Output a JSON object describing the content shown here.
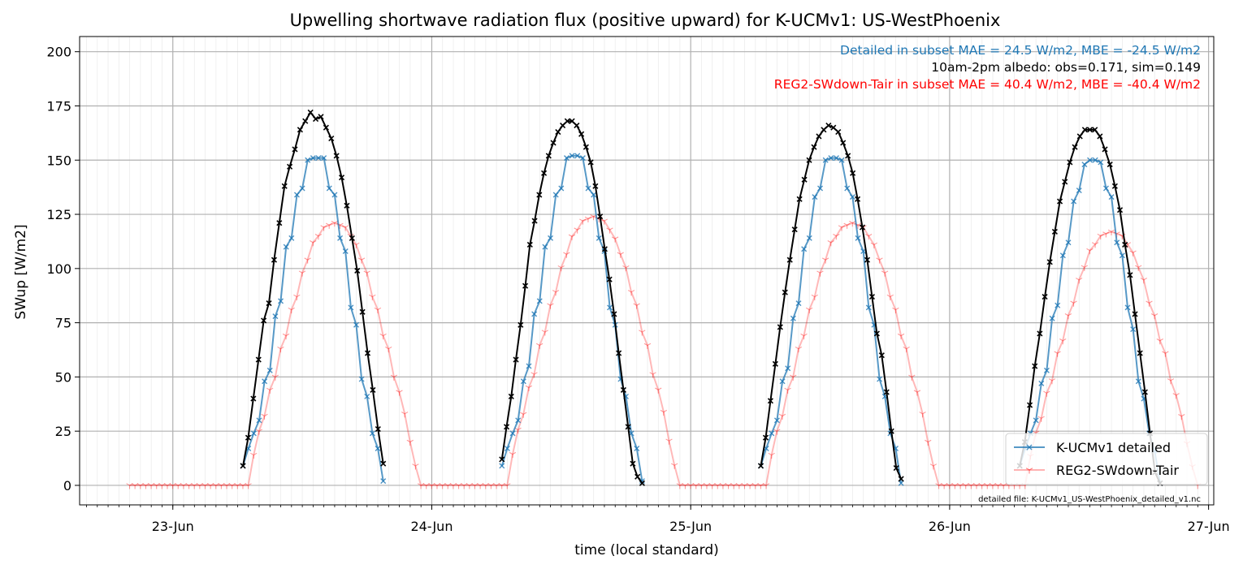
{
  "chart_data": {
    "type": "line",
    "title": "Upwelling shortwave radiation flux (positive upward) for K-UCMv1: US-WestPhoenix",
    "xlabel": "time (local standard)",
    "ylabel": "SWup [W/m2]",
    "x_unit": "day of June (fractional, local standard time)",
    "xlim": [
      22.64,
      27.02
    ],
    "ylim": [
      -9,
      207
    ],
    "yticks": [
      0,
      25,
      50,
      75,
      100,
      125,
      150,
      175,
      200
    ],
    "xticks": [
      {
        "value": 23,
        "label": "23-Jun"
      },
      {
        "value": 24,
        "label": "24-Jun"
      },
      {
        "value": 25,
        "label": "25-Jun"
      },
      {
        "value": 26,
        "label": "26-Jun"
      },
      {
        "value": 27,
        "label": "27-Jun"
      }
    ],
    "grid": true,
    "legend_position": "lower right",
    "annotations": [
      {
        "text": "Detailed in subset MAE = 24.5 W/m2, MBE = -24.5 W/m2",
        "color": "#1f77b4"
      },
      {
        "text": "10am-2pm albedo: obs=0.171, sim=0.149",
        "color": "#000000"
      },
      {
        "text": "REG2-SWdown-Tair in subset MAE = 40.4 W/m2, MBE = -40.4 W/m2",
        "color": "#ff0000"
      }
    ],
    "footnote": "detailed file: K-UCMv1_US-WestPhoenix_detailed_v1.nc",
    "series": [
      {
        "name": "K-UCMv1 detailed",
        "color": "#1f77b4",
        "marker": "x",
        "days": [
          {
            "day": 23,
            "values": [
              9,
              17,
              24,
              30,
              48,
              53,
              78,
              85,
              110,
              114,
              134,
              137,
              150,
              151,
              151,
              151,
              137,
              134,
              114,
              108,
              82,
              74,
              49,
              41,
              24,
              17,
              2
            ]
          },
          {
            "day": 24,
            "values": [
              9,
              17,
              24,
              30,
              48,
              55,
              79,
              85,
              110,
              114,
              134,
              137,
              151,
              152,
              152,
              151,
              137,
              134,
              114,
              108,
              82,
              74,
              49,
              41,
              24,
              17,
              2
            ]
          },
          {
            "day": 25,
            "values": [
              9,
              17,
              24,
              30,
              48,
              54,
              77,
              84,
              109,
              114,
              133,
              137,
              150,
              151,
              151,
              150,
              137,
              133,
              114,
              108,
              82,
              74,
              49,
              41,
              24,
              17,
              1
            ]
          },
          {
            "day": 26,
            "values": [
              9,
              17,
              24,
              30,
              47,
              53,
              77,
              83,
              106,
              112,
              131,
              136,
              148,
              150,
              150,
              149,
              137,
              133,
              112,
              106,
              82,
              72,
              48,
              40,
              24,
              16,
              1
            ]
          }
        ]
      },
      {
        "name": "REG2-SWdown-Tair",
        "color": "#ff0000",
        "marker": "1",
        "start_day": 22.833,
        "step_hours": 0.5,
        "day_values": [
          0,
          14,
          25,
          32,
          44,
          50,
          63,
          69,
          81,
          87,
          98,
          104,
          112,
          115,
          119,
          120,
          121,
          120,
          119,
          115,
          111,
          104,
          98,
          87,
          81,
          69,
          63,
          50,
          43,
          33,
          20,
          9,
          0
        ],
        "day_peaks": [
          121,
          124,
          121,
          117
        ]
      },
      {
        "name": "",
        "color": "#000000",
        "marker": "x",
        "days": [
          {
            "day": 23,
            "values": [
              9,
              22,
              40,
              58,
              76,
              84,
              104,
              121,
              138,
              147,
              155,
              164,
              168,
              172,
              169,
              170,
              165,
              160,
              152,
              142,
              129,
              114,
              99,
              80,
              61,
              44,
              26,
              10
            ]
          },
          {
            "day": 24,
            "values": [
              12,
              27,
              41,
              58,
              74,
              92,
              111,
              122,
              134,
              144,
              152,
              158,
              163,
              166,
              168,
              168,
              166,
              162,
              156,
              149,
              138,
              124,
              109,
              95,
              79,
              61,
              44,
              27,
              10,
              4,
              1
            ]
          },
          {
            "day": 25,
            "values": [
              9,
              22,
              39,
              56,
              73,
              89,
              104,
              118,
              132,
              141,
              150,
              156,
              161,
              164,
              166,
              165,
              163,
              158,
              152,
              144,
              132,
              119,
              104,
              87,
              70,
              60,
              43,
              25,
              8,
              3
            ]
          },
          {
            "day": 26,
            "values": [
              9,
              20,
              37,
              55,
              70,
              87,
              103,
              117,
              131,
              140,
              149,
              156,
              161,
              164,
              164,
              164,
              161,
              155,
              148,
              138,
              127,
              111,
              97,
              79,
              61,
              43,
              24,
              6,
              1
            ]
          }
        ]
      }
    ]
  }
}
